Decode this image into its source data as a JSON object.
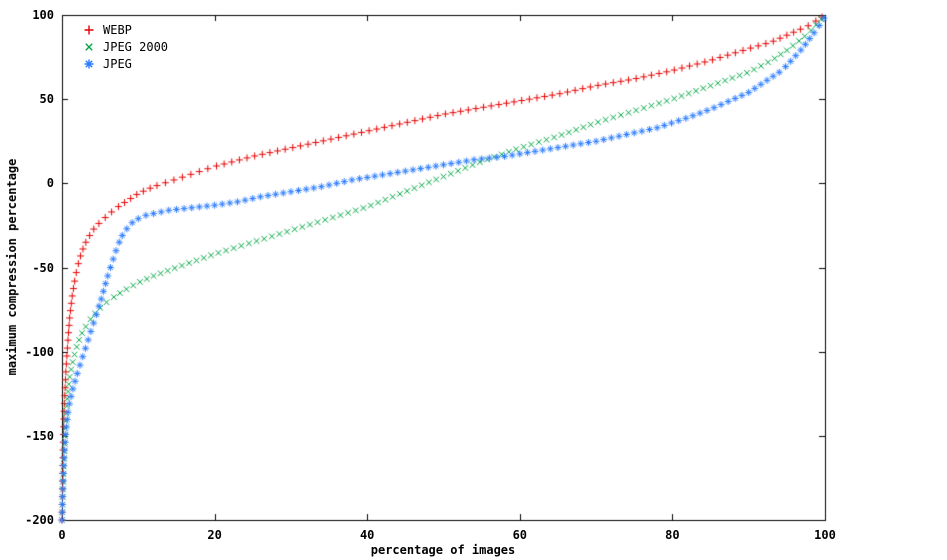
{
  "chart_data": {
    "type": "scatter",
    "title": "",
    "xlabel": "percentage of images",
    "ylabel": "maximum compression percentage",
    "xlim": [
      0,
      100
    ],
    "ylim": [
      -200,
      100
    ],
    "xticks": [
      0,
      20,
      40,
      60,
      80,
      100
    ],
    "yticks": [
      100,
      50,
      0,
      -50,
      -100,
      -150,
      -200
    ],
    "grid": false,
    "legend_position": "top-left-inside",
    "background_color": "#ffffff",
    "border_color": "#000000",
    "series": [
      {
        "name": "WEBP",
        "marker": "plus",
        "color": "#e60000",
        "points": [
          [
            0,
            -200
          ],
          [
            0.1,
            -170
          ],
          [
            0.2,
            -148
          ],
          [
            0.3,
            -132
          ],
          [
            0.5,
            -112
          ],
          [
            0.8,
            -92
          ],
          [
            1,
            -80
          ],
          [
            1.3,
            -68
          ],
          [
            1.7,
            -57
          ],
          [
            2,
            -50
          ],
          [
            2.5,
            -42
          ],
          [
            3,
            -36
          ],
          [
            4,
            -28
          ],
          [
            5,
            -23
          ],
          [
            6,
            -19
          ],
          [
            7,
            -15
          ],
          [
            8,
            -12
          ],
          [
            9,
            -9
          ],
          [
            10,
            -6
          ],
          [
            12,
            -2
          ],
          [
            14,
            1
          ],
          [
            16,
            4
          ],
          [
            18,
            7
          ],
          [
            20,
            10
          ],
          [
            25,
            16
          ],
          [
            30,
            21
          ],
          [
            35,
            26
          ],
          [
            40,
            31
          ],
          [
            45,
            36
          ],
          [
            50,
            41
          ],
          [
            55,
            45
          ],
          [
            60,
            49
          ],
          [
            65,
            53
          ],
          [
            70,
            58
          ],
          [
            75,
            62
          ],
          [
            80,
            67
          ],
          [
            85,
            73
          ],
          [
            90,
            80
          ],
          [
            93,
            84
          ],
          [
            95,
            88
          ],
          [
            97,
            92
          ],
          [
            98,
            94
          ],
          [
            99,
            97
          ],
          [
            100,
            100
          ]
        ]
      },
      {
        "name": "JPEG 2000",
        "marker": "cross",
        "color": "#00a545",
        "points": [
          [
            0,
            -200
          ],
          [
            0.15,
            -175
          ],
          [
            0.3,
            -158
          ],
          [
            0.5,
            -140
          ],
          [
            0.7,
            -128
          ],
          [
            1,
            -115
          ],
          [
            1.5,
            -104
          ],
          [
            2,
            -96
          ],
          [
            2.5,
            -90
          ],
          [
            3,
            -86
          ],
          [
            4,
            -79
          ],
          [
            5,
            -74
          ],
          [
            6,
            -70
          ],
          [
            7,
            -67
          ],
          [
            8,
            -64
          ],
          [
            10,
            -59
          ],
          [
            12,
            -55
          ],
          [
            15,
            -50
          ],
          [
            20,
            -42
          ],
          [
            25,
            -35
          ],
          [
            30,
            -28
          ],
          [
            35,
            -21
          ],
          [
            40,
            -14
          ],
          [
            45,
            -5
          ],
          [
            50,
            4
          ],
          [
            55,
            13
          ],
          [
            60,
            21
          ],
          [
            65,
            28
          ],
          [
            70,
            36
          ],
          [
            75,
            43
          ],
          [
            80,
            50
          ],
          [
            85,
            58
          ],
          [
            90,
            66
          ],
          [
            93,
            73
          ],
          [
            95,
            79
          ],
          [
            97,
            86
          ],
          [
            98,
            90
          ],
          [
            99,
            95
          ],
          [
            100,
            100
          ]
        ]
      },
      {
        "name": "JPEG",
        "marker": "asterisk",
        "color": "#2b7cff",
        "points": [
          [
            0,
            -200
          ],
          [
            0.15,
            -178
          ],
          [
            0.3,
            -162
          ],
          [
            0.5,
            -148
          ],
          [
            0.8,
            -136
          ],
          [
            1,
            -130
          ],
          [
            1.5,
            -121
          ],
          [
            2,
            -113
          ],
          [
            2.5,
            -106
          ],
          [
            3,
            -99
          ],
          [
            3.5,
            -92
          ],
          [
            4,
            -85
          ],
          [
            4.5,
            -78
          ],
          [
            5,
            -71
          ],
          [
            5.5,
            -63
          ],
          [
            6,
            -55
          ],
          [
            6.5,
            -48
          ],
          [
            7,
            -41
          ],
          [
            7.5,
            -35
          ],
          [
            8,
            -30
          ],
          [
            8.5,
            -27
          ],
          [
            9,
            -24
          ],
          [
            10,
            -21
          ],
          [
            11,
            -19
          ],
          [
            12,
            -18
          ],
          [
            14,
            -16
          ],
          [
            16,
            -15
          ],
          [
            18,
            -14
          ],
          [
            20,
            -13
          ],
          [
            23,
            -11
          ],
          [
            26,
            -8
          ],
          [
            30,
            -5
          ],
          [
            34,
            -2
          ],
          [
            38,
            2
          ],
          [
            42,
            5
          ],
          [
            46,
            8
          ],
          [
            50,
            11
          ],
          [
            54,
            14
          ],
          [
            58,
            16
          ],
          [
            62,
            19
          ],
          [
            66,
            22
          ],
          [
            70,
            25
          ],
          [
            74,
            29
          ],
          [
            78,
            33
          ],
          [
            82,
            39
          ],
          [
            85,
            44
          ],
          [
            88,
            50
          ],
          [
            90,
            54
          ],
          [
            92,
            60
          ],
          [
            94,
            66
          ],
          [
            95,
            70
          ],
          [
            96,
            75
          ],
          [
            97,
            80
          ],
          [
            98,
            86
          ],
          [
            99,
            92
          ],
          [
            100,
            99
          ]
        ]
      }
    ]
  }
}
